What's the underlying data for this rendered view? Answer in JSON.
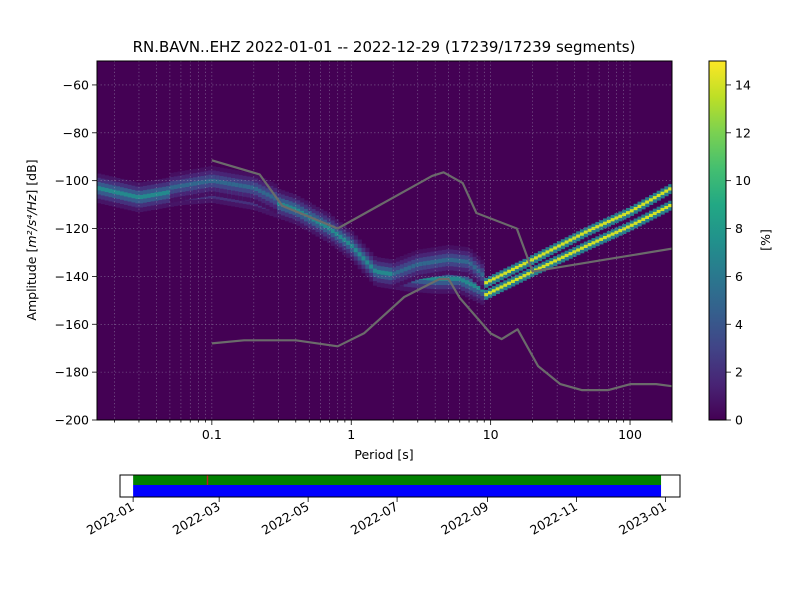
{
  "chart_data": {
    "type": "heatmap",
    "title": "RN.BAVN..EHZ   2022-01-01 -- 2022-12-29  (17239/17239 segments)",
    "xlabel": "Period [s]",
    "ylabel_main": "Amplitude [",
    "ylabel_unit": "m²/s⁴/Hz",
    "ylabel_suffix": "] [dB]",
    "x_scale": "log",
    "xlim": [
      0.015,
      200
    ],
    "ylim": [
      -200,
      -50
    ],
    "x_ticks": [
      {
        "value": 0.1,
        "label": "0.1"
      },
      {
        "value": 1,
        "label": "1"
      },
      {
        "value": 10,
        "label": "10"
      },
      {
        "value": 100,
        "label": "100"
      }
    ],
    "y_ticks": [
      {
        "value": -60,
        "label": "−60"
      },
      {
        "value": -80,
        "label": "−80"
      },
      {
        "value": -100,
        "label": "−100"
      },
      {
        "value": -120,
        "label": "−120"
      },
      {
        "value": -140,
        "label": "−140"
      },
      {
        "value": -160,
        "label": "−160"
      },
      {
        "value": -180,
        "label": "−180"
      },
      {
        "value": -200,
        "label": "−200"
      }
    ],
    "colorbar": {
      "label": "[%]",
      "min": 0,
      "max": 15,
      "ticks": [
        "0",
        "2",
        "4",
        "6",
        "8",
        "10",
        "12",
        "14"
      ],
      "colormap": "viridis"
    },
    "background_color": "#440154",
    "noise_model_color": "#6b6b6b",
    "grid": "dotted",
    "psd_ridges": [
      {
        "name": "main",
        "points": [
          [
            0.015,
            -103
          ],
          [
            0.03,
            -107
          ],
          [
            0.06,
            -104
          ],
          [
            0.1,
            -103
          ],
          [
            0.2,
            -106
          ],
          [
            0.4,
            -112
          ],
          [
            0.7,
            -120
          ],
          [
            1.0,
            -127
          ],
          [
            1.5,
            -138
          ],
          [
            2.5,
            -140
          ],
          [
            4,
            -141
          ],
          [
            6,
            -141
          ],
          [
            9,
            -146
          ]
        ],
        "peak": 7
      },
      {
        "name": "upper",
        "points": [
          [
            0.05,
            -103
          ],
          [
            0.1,
            -100
          ],
          [
            0.2,
            -103
          ],
          [
            0.3,
            -108
          ]
        ],
        "peak": 5
      },
      {
        "name": "secondary",
        "points": [
          [
            2.0,
            -139
          ],
          [
            3.0,
            -135
          ],
          [
            5.0,
            -133
          ],
          [
            7.0,
            -134
          ],
          [
            9,
            -140
          ]
        ],
        "peak": 5
      },
      {
        "name": "line-high",
        "points": [
          [
            9,
            -143
          ],
          [
            20,
            -133
          ],
          [
            50,
            -121
          ],
          [
            100,
            -113
          ],
          [
            200,
            -103
          ]
        ],
        "peak": 14
      },
      {
        "name": "line-low",
        "points": [
          [
            9,
            -148
          ],
          [
            20,
            -138
          ],
          [
            50,
            -127
          ],
          [
            100,
            -119
          ],
          [
            200,
            -110
          ]
        ],
        "peak": 14
      }
    ],
    "noise_models": [
      {
        "points": [
          [
            0.1,
            -91.5
          ],
          [
            0.22,
            -97.4
          ],
          [
            0.32,
            -110.5
          ],
          [
            0.8,
            -120
          ],
          [
            3.8,
            -98
          ],
          [
            4.6,
            -96.5
          ],
          [
            6.3,
            -101
          ],
          [
            7.9,
            -113.5
          ],
          [
            15.4,
            -120
          ],
          [
            20,
            -138
          ],
          [
            354.8,
            -126
          ]
        ]
      },
      {
        "points": [
          [
            0.1,
            -168
          ],
          [
            0.17,
            -166.7
          ],
          [
            0.4,
            -166.7
          ],
          [
            0.8,
            -169.2
          ],
          [
            1.24,
            -163.7
          ],
          [
            2.4,
            -148.6
          ],
          [
            4.3,
            -141.1
          ],
          [
            5.0,
            -141.1
          ],
          [
            6.0,
            -149
          ],
          [
            10,
            -163.8
          ],
          [
            12,
            -166.2
          ],
          [
            15.6,
            -162.1
          ],
          [
            21.9,
            -177.5
          ],
          [
            31.6,
            -185
          ],
          [
            45,
            -187.5
          ],
          [
            70,
            -187.5
          ],
          [
            101,
            -185
          ],
          [
            154,
            -185
          ],
          [
            328,
            -187.5
          ]
        ]
      }
    ],
    "timeline": {
      "x_labels": [
        "2022-01",
        "2022-03",
        "2022-05",
        "2022-07",
        "2022-09",
        "2022-11",
        "2023-01"
      ],
      "x_range": [
        "2021-12-23",
        "2023-01-11"
      ],
      "data_range": [
        "2022-01-01",
        "2022-12-29"
      ],
      "gap_marker_date": "2022-02-21",
      "colors": {
        "top_band": "#008000",
        "bottom_band": "#0000ff",
        "gap": "#b22222"
      }
    }
  }
}
